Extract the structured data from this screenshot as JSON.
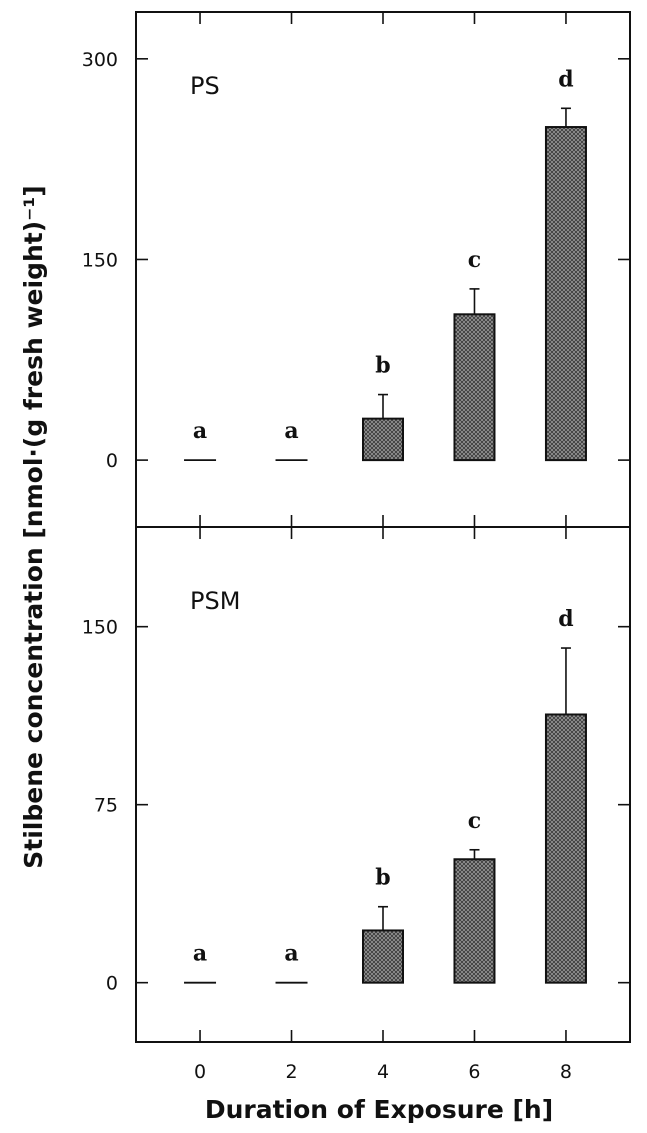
{
  "chart_data": {
    "type": "bar",
    "x_ticks": [
      "0",
      "2",
      "4",
      "6",
      "8"
    ],
    "x": [
      0,
      2,
      4,
      6,
      8
    ],
    "xlabel": "Duration of Exposure [h]",
    "ylabel": "Stilbene concentration [nmol·(g fresh weight)⁻¹]",
    "xlim": [
      -1.4,
      9.4
    ],
    "bar_color": "#8a8a8a",
    "grid": false,
    "panels": [
      {
        "label": "PS",
        "ylim": [
          -50,
          335
        ],
        "y_ticks": [
          0,
          150,
          300
        ],
        "y_tick_labels": [
          "0",
          "150",
          "300"
        ],
        "values": [
          0,
          0,
          31,
          109,
          249
        ],
        "errors": [
          0,
          0,
          18,
          19,
          14
        ],
        "letters": [
          "a",
          "a",
          "b",
          "c",
          "d"
        ]
      },
      {
        "label": "PSM",
        "ylim": [
          -25,
          192
        ],
        "y_ticks": [
          0,
          75,
          150
        ],
        "y_tick_labels": [
          "0",
          "75",
          "150"
        ],
        "values": [
          0,
          0,
          22,
          52,
          113
        ],
        "errors": [
          0,
          0,
          10,
          4,
          28
        ],
        "letters": [
          "a",
          "a",
          "b",
          "c",
          "d"
        ]
      }
    ]
  }
}
